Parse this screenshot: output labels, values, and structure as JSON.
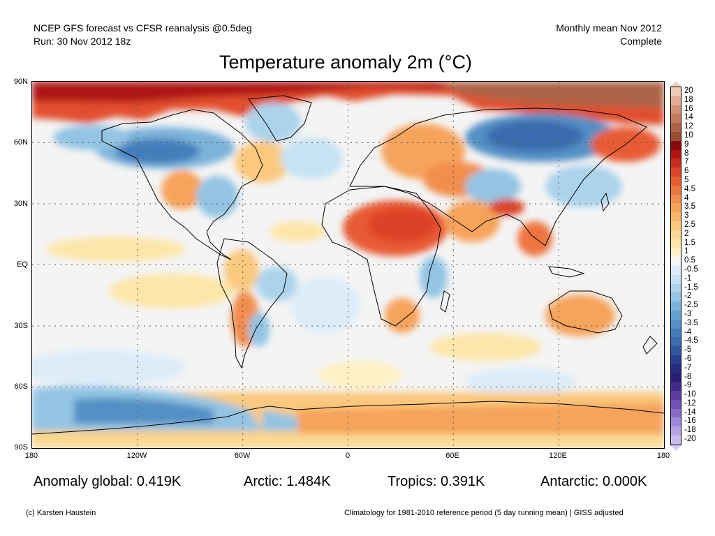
{
  "header": {
    "line1": "NCEP GFS forecast vs CFSR reanalysis @0.5deg",
    "line2": "Run: 30 Nov 2012 18z",
    "right1": "Monthly mean Nov 2012",
    "right2": "Complete"
  },
  "title": "Temperature anomaly 2m (°C)",
  "axes": {
    "lat_labels": [
      "90N",
      "60N",
      "30N",
      "EQ",
      "30S",
      "60S",
      "90S"
    ],
    "lon_labels": [
      "180",
      "120W",
      "60W",
      "0",
      "60E",
      "120E",
      "180"
    ]
  },
  "colorbar": {
    "labels": [
      "20",
      "18",
      "16",
      "14",
      "12",
      "10",
      "9",
      "8",
      "7",
      "6",
      "5",
      "4.5",
      "4",
      "3.5",
      "3",
      "2.5",
      "2",
      "1.5",
      "1",
      "0.5",
      "-0.5",
      "-1",
      "-1.5",
      "-2",
      "-2.5",
      "-3",
      "-3.5",
      "-4",
      "-4.5",
      "-5",
      "-6",
      "-7",
      "-8",
      "-9",
      "-10",
      "-12",
      "-14",
      "-16",
      "-18",
      "-20"
    ],
    "colors": [
      "#f2c9b4",
      "#e4ad93",
      "#d29174",
      "#c17a5c",
      "#ad6346",
      "#9c4d33",
      "#8a0a0a",
      "#b01212",
      "#cc2a1c",
      "#de4228",
      "#e85c34",
      "#ee7540",
      "#f28e4e",
      "#f6a35c",
      "#f8b66c",
      "#fac97e",
      "#fbd993",
      "#fde6a9",
      "#fef1c4",
      "#f5f5f5",
      "#dcecf8",
      "#c7e3f3",
      "#acd3ec",
      "#93c4e3",
      "#7bb3d9",
      "#65a2cf",
      "#5390c5",
      "#437ebb",
      "#3a6bae",
      "#2f57a0",
      "#283f90",
      "#262a80",
      "#2a1e74",
      "#452a8c",
      "#5c3ca0",
      "#7452b6",
      "#8a6cc8",
      "#a187d8",
      "#b7a2e4",
      "#ccbbee"
    ],
    "top_color": "#f4d0c0",
    "bottom_color": "#d8ccf2"
  },
  "stats": {
    "global": "Anomaly global: 0.419K",
    "arctic": "Arctic: 1.484K",
    "tropics": "Tropics: 0.391K",
    "antarctic": "Antarctic: 0.000K"
  },
  "footer": {
    "left": "(c) Karsten Haustein",
    "right": "Climatology for 1981-2010 reference period (5 day running mean) | GISS adjusted"
  }
}
